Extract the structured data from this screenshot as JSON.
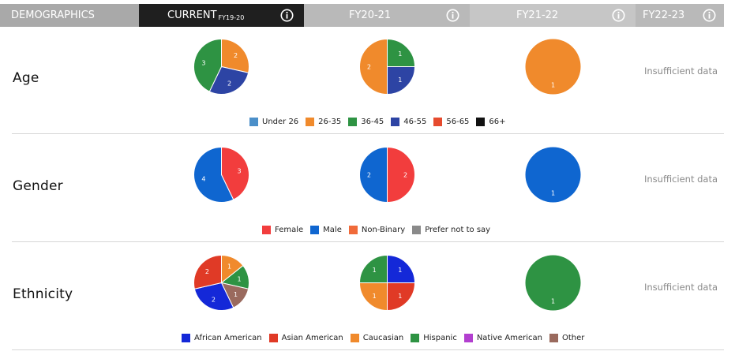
{
  "header": {
    "demographics": "DEMOGRAPHICS",
    "current": "CURRENT",
    "current_sub": "FY19-20",
    "fy20_21": "FY20-21",
    "fy21_22": "FY21-22",
    "fy22_23": "FY22-23"
  },
  "colors": {
    "header_dark": "#1f1f1f",
    "header_gray": "#a9a9a9",
    "header_mid": "#b9b9b9",
    "header_light": "#c6c6c6"
  },
  "insufficient_text": "Insufficient data",
  "chart_data": [
    {
      "type": "pie",
      "row_label": "Age",
      "legend": [
        {
          "name": "Under 26",
          "color": "#4b8fc9"
        },
        {
          "name": "26-35",
          "color": "#f08a2c"
        },
        {
          "name": "36-45",
          "color": "#2e9343"
        },
        {
          "name": "46-55",
          "color": "#2d44a4"
        },
        {
          "name": "56-65",
          "color": "#e64b2e"
        },
        {
          "name": "66+",
          "color": "#111111"
        }
      ],
      "periods": [
        {
          "period": "CURRENT FY19-20",
          "slices": [
            {
              "name": "26-35",
              "value": 2
            },
            {
              "name": "46-55",
              "value": 2
            },
            {
              "name": "36-45",
              "value": 3
            }
          ]
        },
        {
          "period": "FY20-21",
          "slices": [
            {
              "name": "36-45",
              "value": 1
            },
            {
              "name": "46-55",
              "value": 1
            },
            {
              "name": "26-35",
              "value": 2
            }
          ]
        },
        {
          "period": "FY21-22",
          "slices": [
            {
              "name": "26-35",
              "value": 1
            }
          ]
        },
        {
          "period": "FY22-23",
          "slices": []
        }
      ]
    },
    {
      "type": "pie",
      "row_label": "Gender",
      "legend": [
        {
          "name": "Female",
          "color": "#f23d3d"
        },
        {
          "name": "Male",
          "color": "#0f66d0"
        },
        {
          "name": "Non-Binary",
          "color": "#f06a3a"
        },
        {
          "name": "Prefer not to say",
          "color": "#8a8a8a"
        }
      ],
      "periods": [
        {
          "period": "CURRENT FY19-20",
          "slices": [
            {
              "name": "Female",
              "value": 3
            },
            {
              "name": "Male",
              "value": 4
            }
          ]
        },
        {
          "period": "FY20-21",
          "slices": [
            {
              "name": "Female",
              "value": 2
            },
            {
              "name": "Male",
              "value": 2
            }
          ]
        },
        {
          "period": "FY21-22",
          "slices": [
            {
              "name": "Male",
              "value": 1
            }
          ]
        },
        {
          "period": "FY22-23",
          "slices": []
        }
      ]
    },
    {
      "type": "pie",
      "row_label": "Ethnicity",
      "legend": [
        {
          "name": "African American",
          "color": "#1428d8"
        },
        {
          "name": "Asian American",
          "color": "#e03a26"
        },
        {
          "name": "Caucasian",
          "color": "#f08a2c"
        },
        {
          "name": "Hispanic",
          "color": "#2e9343"
        },
        {
          "name": "Native American",
          "color": "#b23fcf"
        },
        {
          "name": "Other",
          "color": "#9a6a5e"
        }
      ],
      "periods": [
        {
          "period": "CURRENT FY19-20",
          "slices": [
            {
              "name": "Caucasian",
              "value": 1
            },
            {
              "name": "Hispanic",
              "value": 1
            },
            {
              "name": "Other",
              "value": 1
            },
            {
              "name": "African American",
              "value": 2
            },
            {
              "name": "Asian American",
              "value": 2
            }
          ]
        },
        {
          "period": "FY20-21",
          "slices": [
            {
              "name": "African American",
              "value": 1
            },
            {
              "name": "Asian American",
              "value": 1
            },
            {
              "name": "Caucasian",
              "value": 1
            },
            {
              "name": "Hispanic",
              "value": 1
            }
          ]
        },
        {
          "period": "FY21-22",
          "slices": [
            {
              "name": "Hispanic",
              "value": 1
            }
          ]
        },
        {
          "period": "FY22-23",
          "slices": []
        }
      ]
    }
  ]
}
